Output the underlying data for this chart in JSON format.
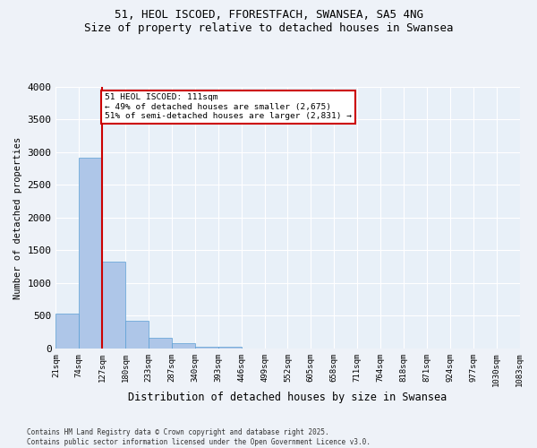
{
  "title_line1": "51, HEOL ISCOED, FFORESTFACH, SWANSEA, SA5 4NG",
  "title_line2": "Size of property relative to detached houses in Swansea",
  "xlabel": "Distribution of detached houses by size in Swansea",
  "ylabel": "Number of detached properties",
  "bar_color": "#aec6e8",
  "bar_edge_color": "#5a9fd4",
  "background_color": "#e8f0f8",
  "grid_color": "#ffffff",
  "annotation_line1": "51 HEOL ISCOED: 111sqm",
  "annotation_line2": "← 49% of detached houses are smaller (2,675)",
  "annotation_line3": "51% of semi-detached houses are larger (2,831) →",
  "vline_color": "#cc0000",
  "annotation_box_edgecolor": "#cc0000",
  "tick_labels": [
    "21sqm",
    "74sqm",
    "127sqm",
    "180sqm",
    "233sqm",
    "287sqm",
    "340sqm",
    "393sqm",
    "446sqm",
    "499sqm",
    "552sqm",
    "605sqm",
    "658sqm",
    "711sqm",
    "764sqm",
    "818sqm",
    "871sqm",
    "924sqm",
    "977sqm",
    "1030sqm",
    "1083sqm"
  ],
  "values": [
    530,
    2920,
    1330,
    420,
    160,
    80,
    30,
    20,
    5,
    0,
    0,
    0,
    0,
    0,
    0,
    0,
    0,
    0,
    0,
    0
  ],
  "ylim": [
    0,
    4000
  ],
  "yticks": [
    0,
    500,
    1000,
    1500,
    2000,
    2500,
    3000,
    3500,
    4000
  ],
  "fig_facecolor": "#eef2f8",
  "footer_line1": "Contains HM Land Registry data © Crown copyright and database right 2025.",
  "footer_line2": "Contains public sector information licensed under the Open Government Licence v3.0."
}
